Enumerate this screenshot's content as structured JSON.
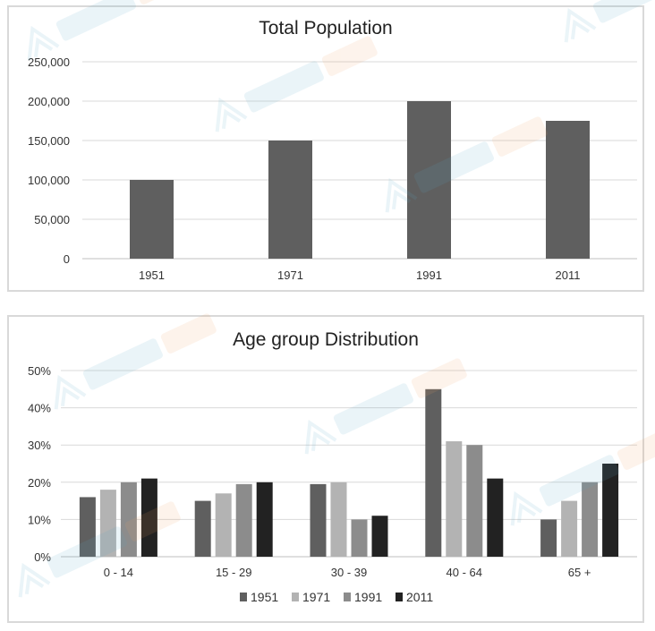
{
  "chart_data": [
    {
      "type": "bar",
      "title": "Total Population",
      "categories": [
        "1951",
        "1971",
        "1991",
        "2011"
      ],
      "values": [
        100000,
        150000,
        200000,
        175000
      ],
      "ylim": [
        0,
        250000
      ],
      "yticks": [
        0,
        50000,
        100000,
        150000,
        200000,
        250000
      ],
      "ytick_labels": [
        "0",
        "50,000",
        "100,000",
        "150,000",
        "200,000",
        "250,000"
      ],
      "grid": true,
      "xlabel": "",
      "ylabel": "",
      "bar_color": "#5f5f5f"
    },
    {
      "type": "bar",
      "title": "Age group Distribution",
      "categories": [
        "0 - 14",
        "15 - 29",
        "30 - 39",
        "40 - 64",
        "65 +"
      ],
      "series": [
        {
          "name": "1951",
          "values": [
            16,
            15,
            19.5,
            45,
            10
          ],
          "color": "#5f5f5f"
        },
        {
          "name": "1971",
          "values": [
            18,
            17,
            20,
            31,
            15
          ],
          "color": "#b3b3b3"
        },
        {
          "name": "1991",
          "values": [
            20,
            19.5,
            10,
            30,
            20
          ],
          "color": "#8c8c8c"
        },
        {
          "name": "2011",
          "values": [
            21,
            20,
            11,
            21,
            25
          ],
          "color": "#222222"
        }
      ],
      "ylim": [
        0,
        50
      ],
      "yticks": [
        0,
        10,
        20,
        30,
        40,
        50
      ],
      "ytick_labels": [
        "0%",
        "10%",
        "20%",
        "30%",
        "40%",
        "50%"
      ],
      "grid": true,
      "legend": "bottom",
      "xlabel": "",
      "ylabel": ""
    }
  ]
}
